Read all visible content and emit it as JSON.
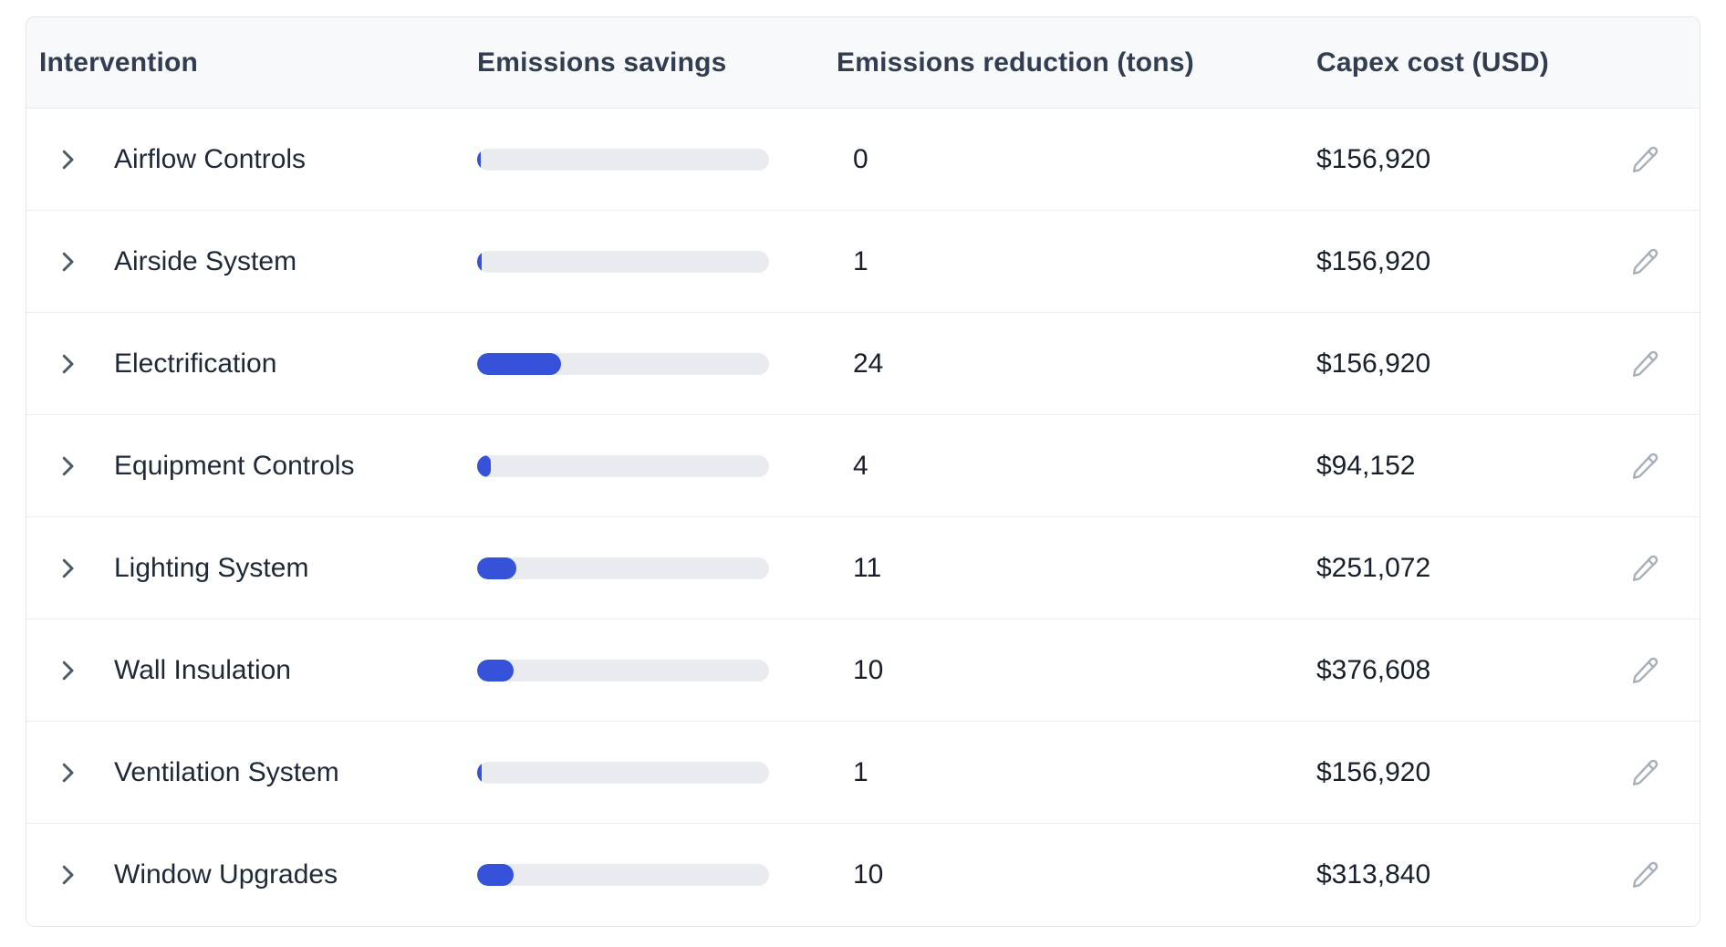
{
  "table": {
    "columns": {
      "intervention": "Intervention",
      "savings": "Emissions savings",
      "reduction": "Emissions reduction (tons)",
      "capex": "Capex cost (USD)"
    },
    "rows": [
      {
        "name": "Airflow Controls",
        "savings_bar_percent": 1.25,
        "reduction_tons": "0",
        "capex_cost": "$156,920"
      },
      {
        "name": "Airside System",
        "savings_bar_percent": 1.6,
        "reduction_tons": "1",
        "capex_cost": "$156,920"
      },
      {
        "name": "Electrification",
        "savings_bar_percent": 28.7,
        "reduction_tons": "24",
        "capex_cost": "$156,920"
      },
      {
        "name": "Equipment Controls",
        "savings_bar_percent": 4.7,
        "reduction_tons": "4",
        "capex_cost": "$94,152"
      },
      {
        "name": "Lighting System",
        "savings_bar_percent": 13.4,
        "reduction_tons": "11",
        "capex_cost": "$251,072"
      },
      {
        "name": "Wall Insulation",
        "savings_bar_percent": 12.5,
        "reduction_tons": "10",
        "capex_cost": "$376,608"
      },
      {
        "name": "Ventilation System",
        "savings_bar_percent": 1.6,
        "reduction_tons": "1",
        "capex_cost": "$156,920"
      },
      {
        "name": "Window Upgrades",
        "savings_bar_percent": 12.5,
        "reduction_tons": "10",
        "capex_cost": "$313,840"
      }
    ]
  },
  "icons": {
    "row_expander": "chevron-right-icon",
    "row_action": "pencil-edit-icon"
  },
  "colors": {
    "bar_fill": "#3552d9",
    "bar_track": "#e9ebef",
    "header_bg": "#f8f9fb",
    "header_text": "#323d52",
    "body_text": "#1f2837",
    "value_text": "#181f2b",
    "chevron": "#4e5968",
    "pencil": "#a7afbc",
    "card_border": "#e4e6ea",
    "row_divider": "#edeef2"
  }
}
